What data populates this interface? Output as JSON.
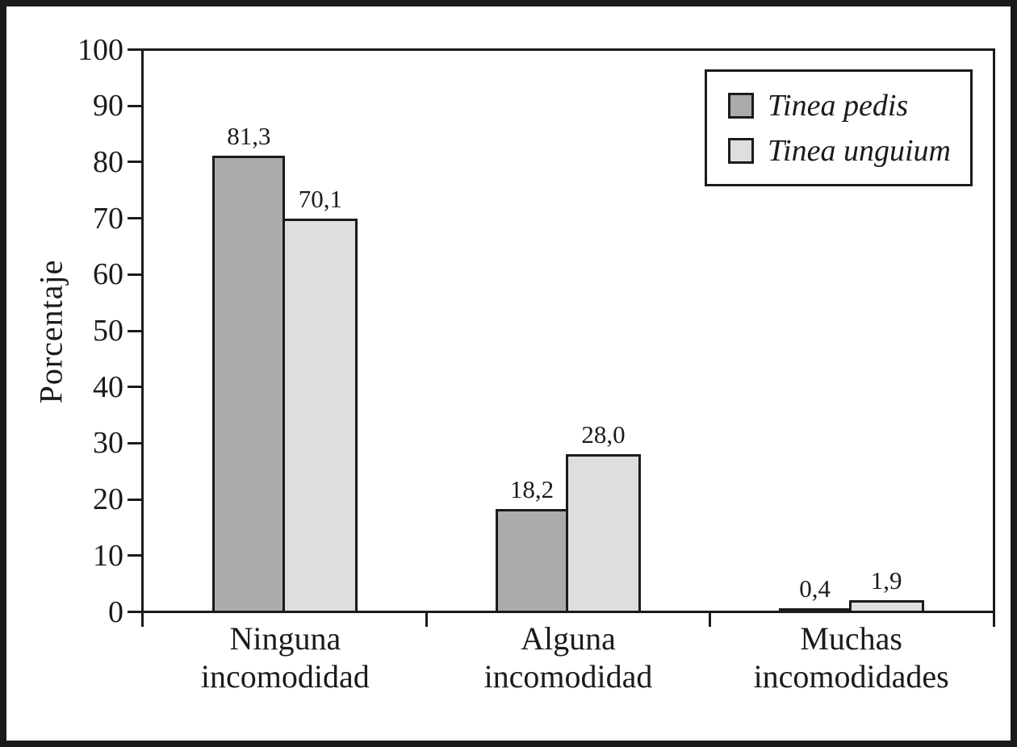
{
  "chart_data": {
    "type": "bar",
    "title": "",
    "ylabel": "Porcentaje",
    "xlabel": "",
    "ylim": [
      0,
      100
    ],
    "y_ticks": [
      0,
      10,
      20,
      30,
      40,
      50,
      60,
      70,
      80,
      90,
      100
    ],
    "grid": false,
    "legend_position": "top-right",
    "categories": [
      "Ninguna\nincomodidad",
      "Alguna\nincomodidad",
      "Muchas\nincomodidades"
    ],
    "series": [
      {
        "name": "Tinea pedis",
        "color": "#a9abad",
        "values": [
          81.3,
          18.2,
          0.4
        ],
        "value_labels": [
          "81,3",
          "18,2",
          "0,4"
        ]
      },
      {
        "name": "Tinea unguium",
        "color": "#dcdee0",
        "values": [
          70.1,
          28.0,
          1.9
        ],
        "value_labels": [
          "70,1",
          "28,0",
          "1,9"
        ]
      }
    ]
  },
  "colors": {
    "line": "#1b1b1b",
    "background": "#ffffff",
    "series_dark": "#a9abad",
    "series_light": "#dcdee0"
  }
}
